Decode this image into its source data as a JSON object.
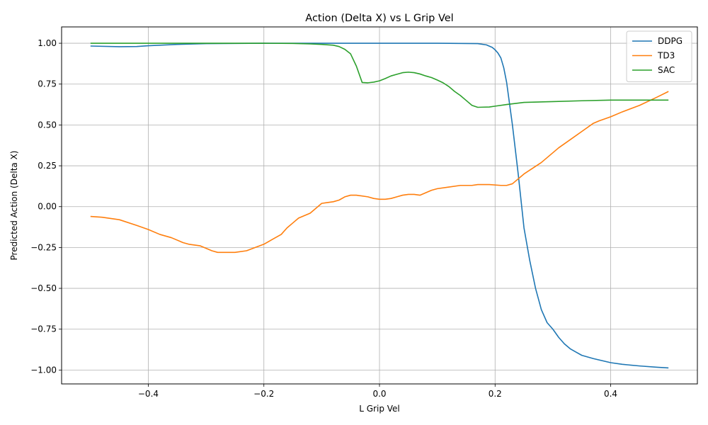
{
  "chart_data": {
    "type": "line",
    "title": "Action (Delta X) vs L Grip Vel",
    "xlabel": "L Grip Vel",
    "ylabel": "Predicted Action (Delta X)",
    "xlim": [
      -0.55,
      0.55
    ],
    "ylim": [
      -1.085,
      1.1
    ],
    "xticks": [
      -0.4,
      -0.2,
      0.0,
      0.2,
      0.4
    ],
    "xtick_labels": [
      "−0.4",
      "−0.2",
      "0.0",
      "0.2",
      "0.4"
    ],
    "yticks": [
      -1.0,
      -0.75,
      -0.5,
      -0.25,
      0.0,
      0.25,
      0.5,
      0.75,
      1.0
    ],
    "ytick_labels": [
      "−1.00",
      "−0.75",
      "−0.50",
      "−0.25",
      "0.00",
      "0.25",
      "0.50",
      "0.75",
      "1.00"
    ],
    "grid": true,
    "legend_position": "top-right",
    "series": [
      {
        "name": "DDPG",
        "color": "#1f77b4",
        "x": [
          -0.5,
          -0.45,
          -0.42,
          -0.4,
          -0.35,
          -0.3,
          -0.2,
          -0.1,
          0.0,
          0.1,
          0.17,
          0.185,
          0.195,
          0.2,
          0.205,
          0.21,
          0.215,
          0.22,
          0.23,
          0.24,
          0.25,
          0.26,
          0.27,
          0.28,
          0.29,
          0.3,
          0.31,
          0.32,
          0.33,
          0.34,
          0.35,
          0.37,
          0.4,
          0.42,
          0.45,
          0.48,
          0.5
        ],
        "y": [
          0.983,
          0.979,
          0.98,
          0.985,
          0.993,
          0.998,
          1.0,
          1.0,
          1.0,
          1.0,
          0.998,
          0.99,
          0.975,
          0.96,
          0.94,
          0.91,
          0.85,
          0.76,
          0.5,
          0.2,
          -0.13,
          -0.33,
          -0.5,
          -0.63,
          -0.71,
          -0.75,
          -0.8,
          -0.84,
          -0.87,
          -0.89,
          -0.91,
          -0.93,
          -0.955,
          -0.965,
          -0.975,
          -0.983,
          -0.987
        ]
      },
      {
        "name": "TD3",
        "color": "#ff7f0e",
        "x": [
          -0.5,
          -0.48,
          -0.45,
          -0.42,
          -0.4,
          -0.38,
          -0.36,
          -0.34,
          -0.33,
          -0.31,
          -0.29,
          -0.28,
          -0.27,
          -0.25,
          -0.23,
          -0.2,
          -0.185,
          -0.17,
          -0.16,
          -0.15,
          -0.14,
          -0.12,
          -0.1,
          -0.09,
          -0.08,
          -0.07,
          -0.06,
          -0.05,
          -0.04,
          -0.02,
          -0.01,
          0.0,
          0.01,
          0.02,
          0.03,
          0.04,
          0.05,
          0.06,
          0.07,
          0.08,
          0.09,
          0.1,
          0.12,
          0.14,
          0.16,
          0.17,
          0.19,
          0.21,
          0.22,
          0.23,
          0.25,
          0.28,
          0.31,
          0.33,
          0.35,
          0.37,
          0.38,
          0.4,
          0.42,
          0.45,
          0.48,
          0.5
        ],
        "y": [
          -0.06,
          -0.065,
          -0.08,
          -0.115,
          -0.14,
          -0.17,
          -0.19,
          -0.22,
          -0.23,
          -0.24,
          -0.27,
          -0.28,
          -0.28,
          -0.28,
          -0.27,
          -0.23,
          -0.2,
          -0.17,
          -0.13,
          -0.1,
          -0.07,
          -0.04,
          0.02,
          0.025,
          0.03,
          0.04,
          0.06,
          0.07,
          0.07,
          0.06,
          0.05,
          0.045,
          0.045,
          0.05,
          0.06,
          0.07,
          0.075,
          0.075,
          0.07,
          0.085,
          0.1,
          0.11,
          0.12,
          0.13,
          0.13,
          0.135,
          0.135,
          0.13,
          0.13,
          0.14,
          0.2,
          0.27,
          0.36,
          0.41,
          0.46,
          0.51,
          0.525,
          0.55,
          0.58,
          0.62,
          0.67,
          0.705
        ]
      },
      {
        "name": "SAC",
        "color": "#2ca02c",
        "x": [
          -0.5,
          -0.3,
          -0.2,
          -0.15,
          -0.12,
          -0.1,
          -0.08,
          -0.07,
          -0.06,
          -0.05,
          -0.04,
          -0.03,
          -0.02,
          -0.01,
          0.0,
          0.01,
          0.02,
          0.03,
          0.04,
          0.05,
          0.06,
          0.07,
          0.08,
          0.09,
          0.1,
          0.11,
          0.12,
          0.13,
          0.14,
          0.15,
          0.16,
          0.17,
          0.18,
          0.19,
          0.2,
          0.22,
          0.25,
          0.3,
          0.35,
          0.4,
          0.45,
          0.5
        ],
        "y": [
          1.0,
          1.0,
          1.0,
          0.999,
          0.996,
          0.993,
          0.988,
          0.98,
          0.963,
          0.935,
          0.86,
          0.76,
          0.758,
          0.762,
          0.77,
          0.784,
          0.8,
          0.81,
          0.82,
          0.823,
          0.82,
          0.812,
          0.8,
          0.79,
          0.775,
          0.758,
          0.735,
          0.705,
          0.68,
          0.65,
          0.62,
          0.608,
          0.609,
          0.61,
          0.615,
          0.625,
          0.638,
          0.643,
          0.648,
          0.652,
          0.652,
          0.652
        ]
      }
    ]
  }
}
